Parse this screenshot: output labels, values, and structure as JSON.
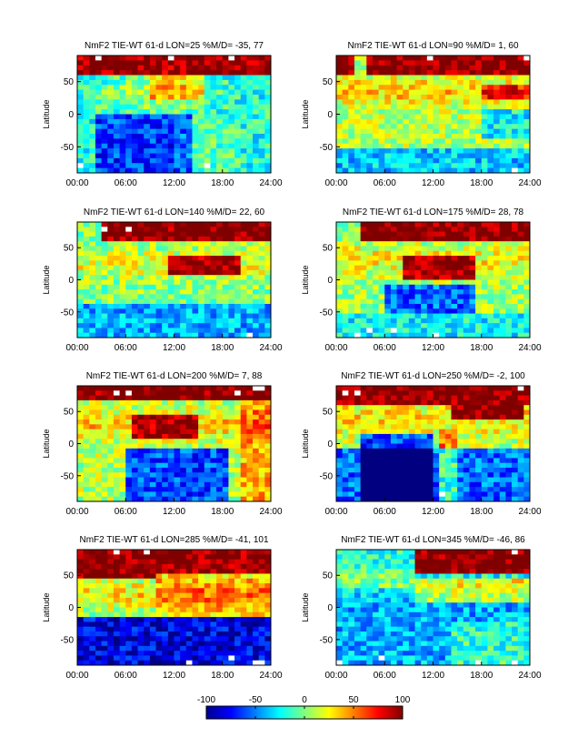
{
  "chart_data": [
    {
      "type": "heatmap",
      "title": "NmF2 TIE-WT 61-d LON=25 %M/D=  -35,  77",
      "ylabel": "Latitude",
      "lon": 25,
      "x_ticks": [
        "00:00",
        "06:00",
        "12:00",
        "18:00",
        "24:00"
      ],
      "y_ticks": [
        "50",
        "0",
        "-50"
      ],
      "xlim": [
        0,
        24
      ],
      "ylim": [
        -90,
        90
      ]
    },
    {
      "type": "heatmap",
      "title": "NmF2 TIE-WT 61-d LON=90 %M/D=   1,  60",
      "ylabel": "Latitude",
      "lon": 90,
      "x_ticks": [
        "00:00",
        "06:00",
        "12:00",
        "18:00",
        "24:00"
      ],
      "y_ticks": [
        "50",
        "0",
        "-50"
      ],
      "xlim": [
        0,
        24
      ],
      "ylim": [
        -90,
        90
      ]
    },
    {
      "type": "heatmap",
      "title": "NmF2 TIE-WT 61-d LON=140 %M/D=  22,  60",
      "ylabel": "Latitude",
      "lon": 140,
      "x_ticks": [
        "00:00",
        "06:00",
        "12:00",
        "18:00",
        "24:00"
      ],
      "y_ticks": [
        "50",
        "0",
        "-50"
      ],
      "xlim": [
        0,
        24
      ],
      "ylim": [
        -90,
        90
      ]
    },
    {
      "type": "heatmap",
      "title": "NmF2 TIE-WT 61-d LON=175 %M/D=  28,  78",
      "ylabel": "Latitude",
      "lon": 175,
      "x_ticks": [
        "00:00",
        "06:00",
        "12:00",
        "18:00",
        "24:00"
      ],
      "y_ticks": [
        "50",
        "0",
        "-50"
      ],
      "xlim": [
        0,
        24
      ],
      "ylim": [
        -90,
        90
      ]
    },
    {
      "type": "heatmap",
      "title": "NmF2 TIE-WT 61-d LON=200 %M/D=   7,  88",
      "ylabel": "Latitude",
      "lon": 200,
      "x_ticks": [
        "00:00",
        "06:00",
        "12:00",
        "18:00",
        "24:00"
      ],
      "y_ticks": [
        "50",
        "0",
        "-50"
      ],
      "xlim": [
        0,
        24
      ],
      "ylim": [
        -90,
        90
      ]
    },
    {
      "type": "heatmap",
      "title": "NmF2 TIE-WT 61-d LON=250 %M/D=  -2, 100",
      "ylabel": "Latitude",
      "lon": 250,
      "x_ticks": [
        "00:00",
        "06:00",
        "12:00",
        "18:00",
        "24:00"
      ],
      "y_ticks": [
        "50",
        "0",
        "-50"
      ],
      "xlim": [
        0,
        24
      ],
      "ylim": [
        -90,
        90
      ]
    },
    {
      "type": "heatmap",
      "title": "NmF2 TIE-WT 61-d LON=285 %M/D=  -41, 101",
      "ylabel": "Latitude",
      "lon": 285,
      "x_ticks": [
        "00:00",
        "06:00",
        "12:00",
        "18:00",
        "24:00"
      ],
      "y_ticks": [
        "50",
        "0",
        "-50"
      ],
      "xlim": [
        0,
        24
      ],
      "ylim": [
        -90,
        90
      ]
    },
    {
      "type": "heatmap",
      "title": "NmF2 TIE-WT 61-d LON=345 %M/D=  -46,  86",
      "ylabel": "Latitude",
      "lon": 345,
      "x_ticks": [
        "00:00",
        "06:00",
        "12:00",
        "18:00",
        "24:00"
      ],
      "y_ticks": [
        "50",
        "0",
        "-50"
      ],
      "xlim": [
        0,
        24
      ],
      "ylim": [
        -90,
        90
      ]
    }
  ],
  "colorbar": {
    "ticks": [
      "-100",
      "-50",
      "0",
      "50",
      "100"
    ],
    "range": [
      -100,
      100
    ],
    "colormap": "jet",
    "colors": [
      "#00008f",
      "#0000ff",
      "#00ffff",
      "#ffff00",
      "#ff0000",
      "#800000"
    ]
  }
}
